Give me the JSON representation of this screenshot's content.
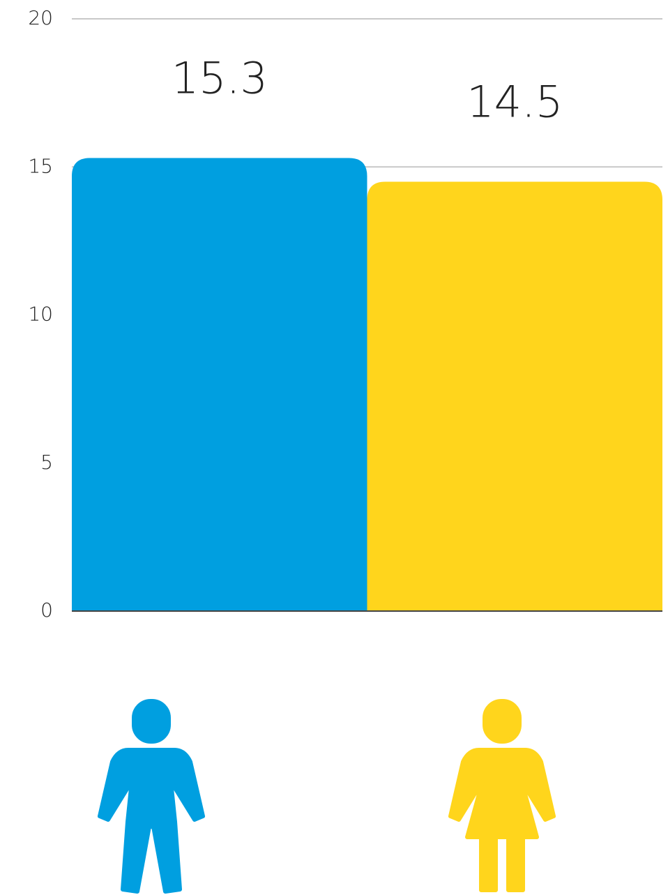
{
  "chart_data": {
    "type": "bar",
    "categories": [
      null,
      null
    ],
    "values": [
      15.3,
      14.5
    ],
    "colors": [
      "#009fe0",
      "#ffd51c"
    ],
    "ylim": [
      0,
      20
    ],
    "yticks": [
      0,
      5,
      10,
      15,
      20
    ],
    "grid": true
  }
}
